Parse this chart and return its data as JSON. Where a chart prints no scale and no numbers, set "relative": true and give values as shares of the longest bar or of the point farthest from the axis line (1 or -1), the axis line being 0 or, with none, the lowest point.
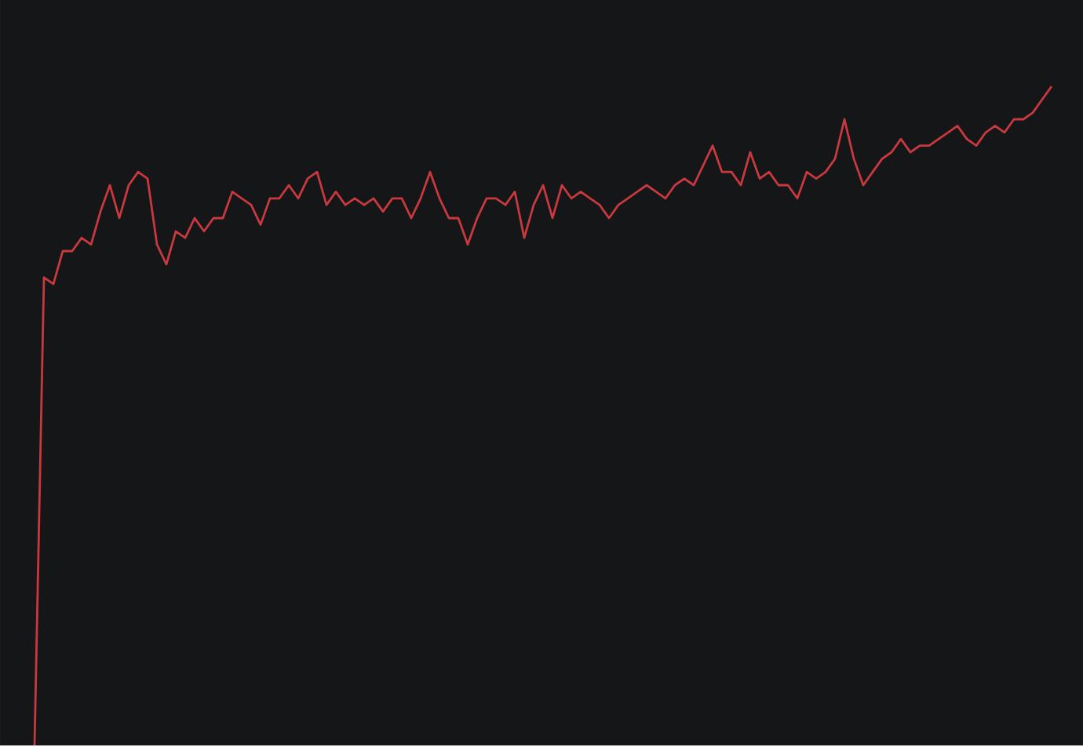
{
  "chart_data": {
    "type": "line",
    "relative": true,
    "categories": [
      null,
      null,
      null,
      null,
      null,
      null,
      null,
      null,
      null,
      null,
      null,
      null,
      null,
      null,
      null,
      null,
      null,
      null,
      null,
      null,
      null,
      null,
      null,
      null,
      null,
      null,
      null,
      null,
      null,
      null,
      null,
      null,
      null,
      null,
      null,
      null,
      null,
      null,
      null,
      null,
      null,
      null,
      null,
      null,
      null,
      null,
      null,
      null,
      null,
      null,
      null,
      null,
      null,
      null,
      null,
      null,
      null,
      null,
      null,
      null,
      null,
      null,
      null,
      null,
      null,
      null,
      null,
      null,
      null,
      null,
      null,
      null,
      null,
      null,
      null,
      null,
      null,
      null,
      null,
      null,
      null,
      null,
      null,
      null,
      null,
      null,
      null,
      null,
      null,
      null,
      null,
      null,
      null,
      null,
      null,
      null,
      null,
      null,
      null,
      null,
      null,
      null,
      null,
      null,
      null,
      null,
      null,
      null,
      null
    ],
    "series": [
      {
        "color": "#c8393f",
        "values": [
          0,
          0.71,
          0.7,
          0.75,
          0.75,
          0.77,
          0.76,
          0.81,
          0.85,
          0.8,
          0.85,
          0.87,
          0.86,
          0.76,
          0.73,
          0.78,
          0.77,
          0.8,
          0.78,
          0.8,
          0.8,
          0.84,
          0.83,
          0.82,
          0.79,
          0.83,
          0.83,
          0.85,
          0.83,
          0.86,
          0.87,
          0.82,
          0.84,
          0.82,
          0.83,
          0.82,
          0.83,
          0.81,
          0.83,
          0.83,
          0.8,
          0.83,
          0.87,
          0.83,
          0.8,
          0.8,
          0.76,
          0.8,
          0.83,
          0.83,
          0.82,
          0.84,
          0.77,
          0.82,
          0.85,
          0.8,
          0.85,
          0.83,
          0.84,
          0.83,
          0.82,
          0.8,
          0.82,
          0.83,
          0.84,
          0.85,
          0.84,
          0.83,
          0.85,
          0.86,
          0.85,
          0.88,
          0.91,
          0.87,
          0.87,
          0.85,
          0.9,
          0.86,
          0.87,
          0.85,
          0.85,
          0.83,
          0.87,
          0.86,
          0.87,
          0.89,
          0.95,
          0.89,
          0.85,
          0.87,
          0.89,
          0.9,
          0.92,
          0.9,
          0.91,
          0.91,
          0.92,
          0.93,
          0.94,
          0.92,
          0.91,
          0.93,
          0.94,
          0.93,
          0.95,
          0.95,
          0.96,
          0.98,
          1.0
        ]
      }
    ]
  }
}
